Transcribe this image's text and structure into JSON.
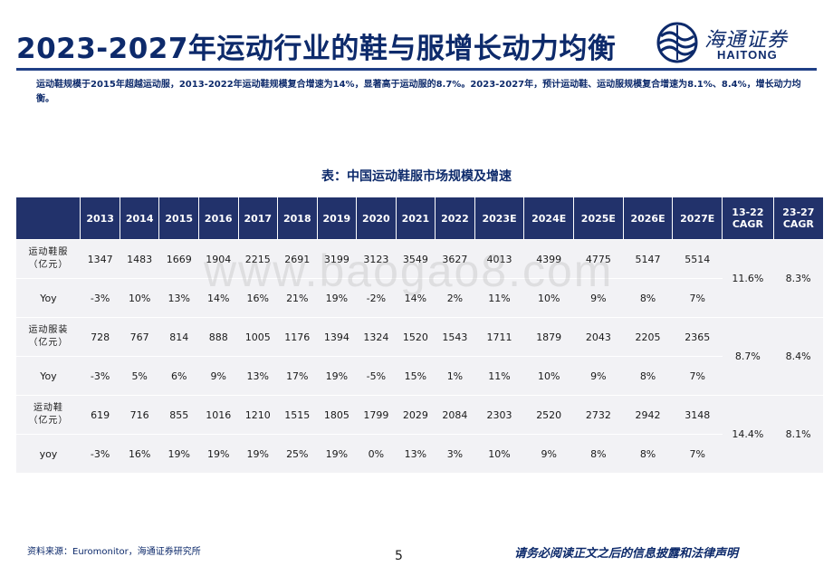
{
  "header": {
    "title": "2023-2027年运动行业的鞋与服增长动力均衡",
    "logo_cn": "海通证券",
    "logo_en": "HAITONG"
  },
  "summary": "运动鞋规模于2015年超越运动服，2013-2022年运动鞋规模复合增速为14%，显著高于运动服的8.7%。2023-2027年，预计运动鞋、运动服规模复合增速为8.1%、8.4%，增长动力均衡。",
  "table": {
    "caption": "表：中国运动鞋服市场规模及增速",
    "years": [
      "2013",
      "2014",
      "2015",
      "2016",
      "2017",
      "2018",
      "2019",
      "2020",
      "2021",
      "2022",
      "2023E",
      "2024E",
      "2025E",
      "2026E",
      "2027E"
    ],
    "cagr_headers": [
      {
        "line1": "13-22",
        "line2": "CAGR"
      },
      {
        "line1": "23-27",
        "line2": "CAGR"
      }
    ],
    "groups": [
      {
        "name_line1": "运动鞋服",
        "name_line2": "（亿元）",
        "values": [
          "1347",
          "1483",
          "1669",
          "1904",
          "2215",
          "2691",
          "3199",
          "3123",
          "3549",
          "3627",
          "4013",
          "4399",
          "4775",
          "5147",
          "5514"
        ],
        "growth_label": "Yoy",
        "growth": [
          "-3%",
          "10%",
          "13%",
          "14%",
          "16%",
          "21%",
          "19%",
          "-2%",
          "14%",
          "2%",
          "11%",
          "10%",
          "9%",
          "8%",
          "7%"
        ],
        "cagr_13_22": "11.6%",
        "cagr_23_27": "8.3%"
      },
      {
        "name_line1": "运动服装",
        "name_line2": "（亿元）",
        "values": [
          "728",
          "767",
          "814",
          "888",
          "1005",
          "1176",
          "1394",
          "1324",
          "1520",
          "1543",
          "1711",
          "1879",
          "2043",
          "2205",
          "2365"
        ],
        "growth_label": "Yoy",
        "growth": [
          "-3%",
          "5%",
          "6%",
          "9%",
          "13%",
          "17%",
          "19%",
          "-5%",
          "15%",
          "1%",
          "11%",
          "10%",
          "9%",
          "8%",
          "7%"
        ],
        "cagr_13_22": "8.7%",
        "cagr_23_27": "8.4%"
      },
      {
        "name_line1": "运动鞋",
        "name_line2": "（亿元）",
        "values": [
          "619",
          "716",
          "855",
          "1016",
          "1210",
          "1515",
          "1805",
          "1799",
          "2029",
          "2084",
          "2303",
          "2520",
          "2732",
          "2942",
          "3148"
        ],
        "growth_label": "yoy",
        "growth": [
          "-3%",
          "16%",
          "19%",
          "19%",
          "19%",
          "25%",
          "19%",
          "0%",
          "13%",
          "3%",
          "10%",
          "9%",
          "8%",
          "8%",
          "7%"
        ],
        "cagr_13_22": "14.4%",
        "cagr_23_27": "8.1%"
      }
    ]
  },
  "watermark": "www.baogao8.com",
  "footer": {
    "source": "资料来源：Euromonitor，海通证券研究所",
    "page": "5",
    "disclaimer": "请务必阅读正文之后的信息披露和法律声明"
  },
  "colors": {
    "brand": "#0d2a6b",
    "header_bg": "#22326b",
    "cagr_bg": "#f4e5ea",
    "row_bg": "#f2f2f5"
  }
}
